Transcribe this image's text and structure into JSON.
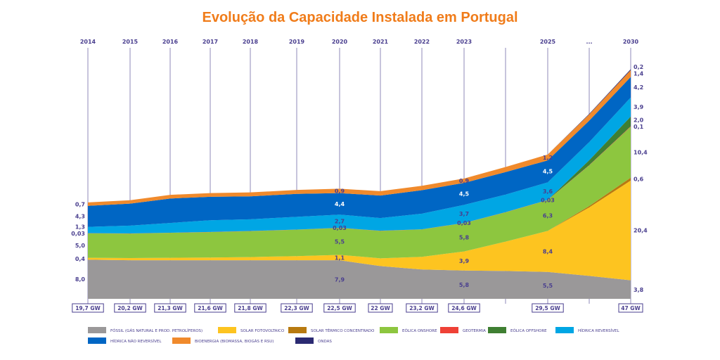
{
  "chart_data": {
    "type": "area",
    "title": "Evolução da Capacidade Instalada em Portugal",
    "categories": [
      "2014",
      "2015",
      "2016",
      "2017",
      "2018",
      "2019",
      "2020",
      "2021",
      "2022",
      "2023",
      "",
      "2025",
      "...",
      "2030"
    ],
    "totals": [
      "19,7 GW",
      "20,2 GW",
      "21,3 GW",
      "21,6 GW",
      "21,8 GW",
      "22,3 GW",
      "22,5 GW",
      "22 GW",
      "23,2 GW",
      "24,6 GW",
      "",
      "29,5 GW",
      "",
      "47 GW"
    ],
    "unit": "GW",
    "series": [
      {
        "name": "FÓSSIL (GÁS NATURAL E PROD. PETROLÍFEROS)",
        "color": "#9a9899",
        "values": [
          8.0,
          7.9,
          7.9,
          7.9,
          7.9,
          7.9,
          7.9,
          6.7,
          6.0,
          5.8,
          5.7,
          5.5,
          4.7,
          3.8
        ],
        "labels": [
          "8,0",
          null,
          null,
          null,
          null,
          null,
          "7,9",
          null,
          null,
          "5,8",
          null,
          "5,5",
          null,
          "3,8"
        ]
      },
      {
        "name": "SOLAR FOTOVOLTAICO",
        "color": "#fdc420",
        "values": [
          0.4,
          0.45,
          0.5,
          0.55,
          0.65,
          0.85,
          1.1,
          1.6,
          2.6,
          3.9,
          6.0,
          8.4,
          14.0,
          20.4
        ],
        "labels": [
          "0,4",
          null,
          null,
          null,
          null,
          null,
          "1,1",
          null,
          null,
          "3,9",
          null,
          "8,4",
          null,
          "20,4"
        ]
      },
      {
        "name": "SOLAR TÉRMICO CONCENTRADO",
        "color": "#b87a10",
        "values": [
          0,
          0,
          0,
          0,
          0,
          0,
          0,
          0,
          0,
          0,
          0,
          0,
          0.3,
          0.6
        ],
        "labels": [
          null,
          null,
          null,
          null,
          null,
          null,
          null,
          null,
          null,
          null,
          null,
          null,
          null,
          "0,6"
        ]
      },
      {
        "name": "EÓLICA ONSHORE",
        "color": "#8dc63f",
        "values": [
          5.0,
          5.0,
          5.1,
          5.2,
          5.3,
          5.4,
          5.5,
          5.6,
          5.6,
          5.8,
          6.0,
          6.3,
          8.3,
          10.4
        ],
        "labels": [
          "5,0",
          null,
          null,
          null,
          null,
          null,
          "5,5",
          null,
          null,
          "5,8",
          null,
          "6,3",
          null,
          "10,4"
        ]
      },
      {
        "name": "GEOTERMIA",
        "color": "#ef4136",
        "values": [
          0.03,
          0.03,
          0.03,
          0.03,
          0.03,
          0.03,
          0.03,
          0.03,
          0.03,
          0.03,
          0.03,
          0.03,
          0.06,
          0.1
        ],
        "labels": [
          "0,03",
          null,
          null,
          null,
          null,
          null,
          "0,03",
          null,
          null,
          "0,03",
          null,
          "0,03",
          null,
          "0,1"
        ]
      },
      {
        "name": "EÓLICA OFFSHORE",
        "color": "#3f7f32",
        "values": [
          0,
          0,
          0,
          0,
          0,
          0,
          0,
          0,
          0,
          0,
          0,
          0,
          1.0,
          2.0
        ],
        "labels": [
          null,
          null,
          null,
          null,
          null,
          null,
          null,
          null,
          null,
          null,
          null,
          null,
          null,
          "2,0"
        ]
      },
      {
        "name": "HÍDRICA REVERSÍVEL",
        "color": "#00a6e4",
        "values": [
          1.3,
          1.6,
          2.0,
          2.4,
          2.4,
          2.6,
          2.7,
          2.6,
          3.2,
          3.7,
          3.6,
          3.6,
          3.7,
          3.9
        ],
        "labels": [
          "1,3",
          null,
          null,
          null,
          null,
          null,
          "2,7",
          null,
          null,
          "3,7",
          null,
          "3,6",
          null,
          "3,9"
        ]
      },
      {
        "name": "HÍDRICA NÃO REVERSÍVEL",
        "color": "#0066c4",
        "values": [
          4.3,
          4.5,
          5.0,
          4.8,
          4.7,
          4.7,
          4.4,
          4.6,
          4.8,
          4.5,
          4.6,
          4.5,
          4.4,
          4.2
        ],
        "labels": [
          "4,3",
          null,
          null,
          null,
          null,
          null,
          "4,4",
          null,
          null,
          "4,5",
          null,
          "4,5",
          null,
          "4,2"
        ]
      },
      {
        "name": "BIOENERGIA (BIOMASSA, BIOGÁS E RSU)",
        "color": "#f08a2c",
        "values": [
          0.7,
          0.7,
          0.75,
          0.75,
          0.8,
          0.8,
          0.9,
          0.9,
          0.9,
          0.9,
          1.05,
          1.2,
          1.3,
          1.4
        ],
        "labels": [
          "0,7",
          null,
          null,
          null,
          null,
          null,
          "0,9",
          null,
          null,
          "0,9",
          null,
          "1,2",
          null,
          "1,4"
        ]
      },
      {
        "name": "ONDAS",
        "color": "#2b2a72",
        "values": [
          0,
          0,
          0,
          0,
          0,
          0,
          0,
          0,
          0,
          0,
          0,
          0,
          0.1,
          0.2
        ],
        "labels": [
          null,
          null,
          null,
          null,
          null,
          null,
          null,
          null,
          null,
          null,
          null,
          null,
          null,
          "0,2"
        ]
      }
    ],
    "legend_placement": "bottom",
    "grid": false
  }
}
